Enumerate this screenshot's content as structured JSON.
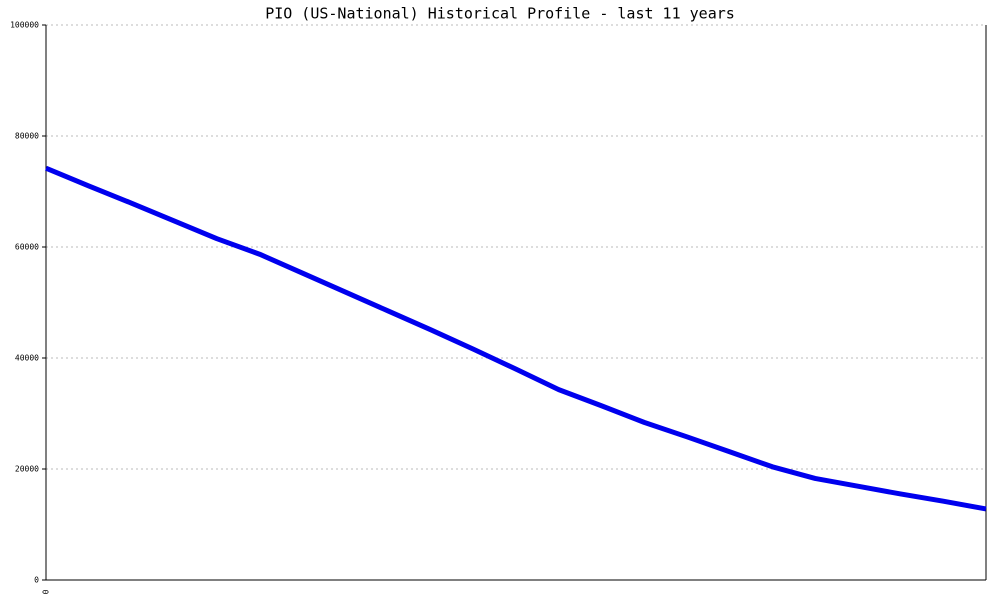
{
  "chart_data": {
    "type": "line",
    "title": "PIO (US-National) Historical Profile - last 11 years",
    "categories": [
      "0",
      null,
      null,
      null,
      null,
      null,
      null,
      null,
      null,
      null,
      null,
      null,
      null,
      null,
      null,
      null,
      null,
      null,
      null,
      null,
      null,
      null,
      null
    ],
    "series": [
      {
        "color": "#0000ee",
        "values": [
          74200,
          71000,
          67900,
          64700,
          61500,
          58700,
          55300,
          51900,
          48500,
          45100,
          41600,
          38000,
          34300,
          31400,
          28400,
          25800,
          23100,
          20400,
          18300,
          16900,
          15500,
          14200,
          12800
        ]
      }
    ],
    "ylim": [
      0,
      100000
    ],
    "yticks": [
      0,
      20000,
      40000,
      60000,
      80000,
      100000
    ],
    "grid": true
  }
}
